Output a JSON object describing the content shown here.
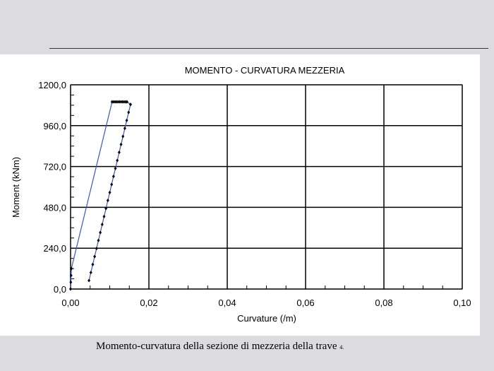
{
  "caption": {
    "text": "Momento-curvatura della sezione di mezzeria della trave",
    "note": "4."
  },
  "chart_data": {
    "type": "line",
    "title": "MOMENTO - CURVATURA MEZZERIA",
    "xlabel": "Curvature (/m)",
    "ylabel": "Moment (kNm)",
    "xlim": [
      0,
      0.1
    ],
    "ylim": [
      0,
      1200
    ],
    "xticks": [
      0,
      0.02,
      0.04,
      0.06,
      0.08,
      0.1
    ],
    "xtick_labels": [
      "0,00",
      "0,02",
      "0,04",
      "0,06",
      "0,08",
      "0,10"
    ],
    "yticks": [
      0,
      240,
      480,
      720,
      960,
      1200
    ],
    "ytick_labels": [
      "0,0",
      "240,0",
      "480,0",
      "720,0",
      "960,0",
      "1200,0"
    ],
    "grid": true,
    "line_color": "#3a55c8",
    "marker_color": "#000000",
    "series": [
      {
        "x": [
          0,
          0.0002,
          0.0106,
          0.0144,
          0.0153,
          0.0047
        ],
        "y": [
          0,
          120,
          1100,
          1100,
          1085,
          50
        ]
      }
    ]
  }
}
